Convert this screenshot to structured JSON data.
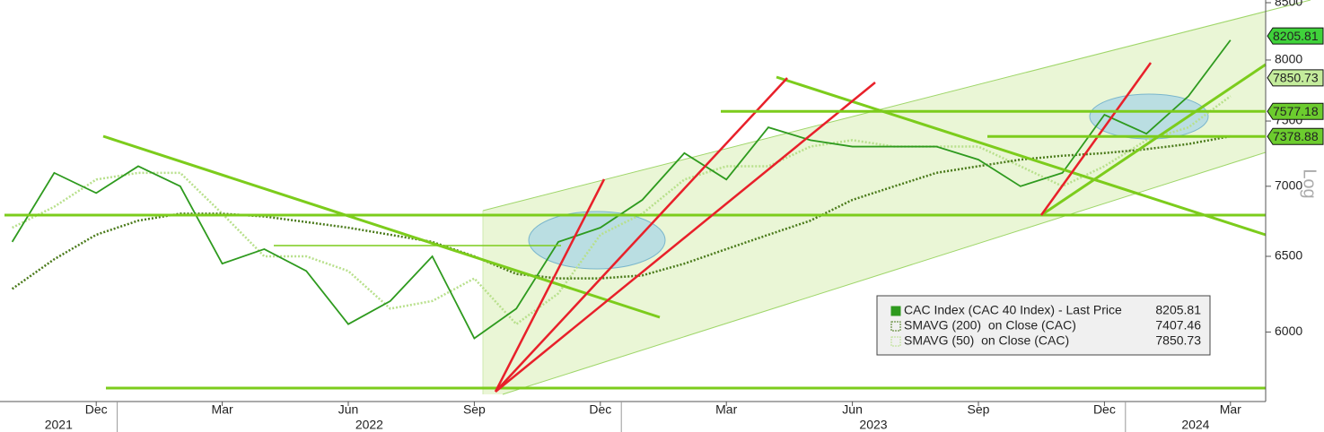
{
  "chart_data": {
    "type": "line",
    "log_scale": true,
    "ylim": [
      5580,
      8500
    ],
    "yticks": [
      6000,
      6500,
      7000,
      7500,
      8000,
      8500
    ],
    "y_axis_label": "Log",
    "x": [
      "2021-10",
      "2021-11",
      "2021-12",
      "2022-01",
      "2022-02",
      "2022-03",
      "2022-04",
      "2022-05",
      "2022-06",
      "2022-07",
      "2022-08",
      "2022-09",
      "2022-10",
      "2022-11",
      "2022-12",
      "2023-01",
      "2023-02",
      "2023-03",
      "2023-04",
      "2023-05",
      "2023-06",
      "2023-07",
      "2023-08",
      "2023-09",
      "2023-10",
      "2023-11",
      "2023-12",
      "2024-01",
      "2024-02",
      "2024-03"
    ],
    "xticks": [
      {
        "value": "2021-12",
        "label": "Dec"
      },
      {
        "value": "2022-03",
        "label": "Mar"
      },
      {
        "value": "2022-06",
        "label": "Jun"
      },
      {
        "value": "2022-09",
        "label": "Sep"
      },
      {
        "value": "2022-12",
        "label": "Dec"
      },
      {
        "value": "2023-03",
        "label": "Mar"
      },
      {
        "value": "2023-06",
        "label": "Jun"
      },
      {
        "value": "2023-09",
        "label": "Sep"
      },
      {
        "value": "2023-12",
        "label": "Dec"
      },
      {
        "value": "2024-03",
        "label": "Mar"
      }
    ],
    "years": [
      "2021",
      "2022",
      "2023",
      "2024"
    ],
    "series": [
      {
        "name": "CAC Index (CAC 40 Index) - Last Price",
        "color": "#2e9a1e",
        "style": "solid",
        "last": 8205.81,
        "values": [
          6600,
          7100,
          6950,
          7150,
          7000,
          6450,
          6550,
          6400,
          6050,
          6200,
          6500,
          5960,
          6150,
          6600,
          6700,
          6900,
          7250,
          7050,
          7450,
          7350,
          7300,
          7300,
          7300,
          7200,
          7000,
          7100,
          7550,
          7400,
          7700,
          8170
        ]
      },
      {
        "name": "SMAVG (200)  on Close (CAC)",
        "color": "#4a7a1a",
        "style": "dotted",
        "last": 7407.46,
        "values": [
          6280,
          6480,
          6650,
          6750,
          6800,
          6800,
          6780,
          6740,
          6700,
          6650,
          6600,
          6500,
          6380,
          6350,
          6350,
          6370,
          6450,
          6550,
          6650,
          6750,
          6900,
          7000,
          7100,
          7150,
          7200,
          7230,
          7250,
          7280,
          7320,
          7380
        ]
      },
      {
        "name": "SMAVG (50)  on Close (CAC)",
        "color": "#b8e08c",
        "style": "dotted",
        "last": 7850.73,
        "values": [
          6700,
          6850,
          7050,
          7100,
          7100,
          6800,
          6500,
          6500,
          6400,
          6150,
          6200,
          6350,
          6050,
          6250,
          6650,
          6800,
          7050,
          7150,
          7150,
          7300,
          7350,
          7300,
          7300,
          7300,
          7150,
          7000,
          7150,
          7350,
          7450,
          7700
        ]
      }
    ],
    "price_tags": [
      {
        "value": 8205.81,
        "color": "#3fd23a"
      },
      {
        "value": 7850.73,
        "color": "#c4ec9c"
      },
      {
        "value": 7577.18,
        "color": "#6ccc2e"
      },
      {
        "value": 7378.88,
        "color": "#6ccc2e"
      }
    ]
  }
}
